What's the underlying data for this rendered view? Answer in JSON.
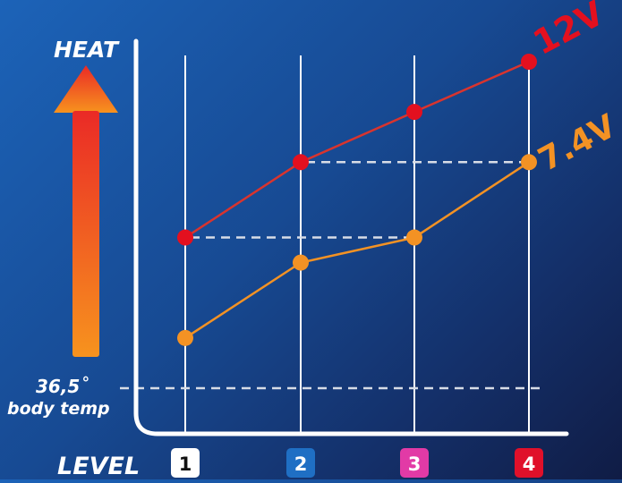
{
  "chart_data": {
    "type": "line",
    "y_axis_label": "HEAT",
    "x_axis_label": "LEVEL",
    "baseline": {
      "value_label": "36,5˚",
      "label": "body temp"
    },
    "categories": [
      "1",
      "2",
      "3",
      "4"
    ],
    "category_colors": [
      "#ffffff",
      "#1f6fc4",
      "#e23aa6",
      "#e0102a"
    ],
    "category_text_colors": [
      "#111111",
      "#ffffff",
      "#ffffff",
      "#ffffff"
    ],
    "series": [
      {
        "name": "12V",
        "color": "#e3101f",
        "line_color": "#d9342e",
        "values": [
          3,
          4.5,
          5.5,
          6.5
        ]
      },
      {
        "name": "7.4V",
        "color": "#f39224",
        "line_color": "#f39224",
        "values": [
          1,
          2.5,
          3,
          4.5
        ]
      }
    ],
    "reference_lines": [
      {
        "from_series": "12V",
        "from_category": "1",
        "to_series": "7.4V",
        "to_category": "3"
      },
      {
        "from_series": "12V",
        "from_category": "2",
        "to_series": "7.4V",
        "to_category": "4"
      }
    ],
    "ylim": [
      0,
      6.5
    ],
    "grid": true,
    "colors": {
      "axis": "#ffffff",
      "arrow_top": "#ea2a26",
      "arrow_bottom": "#f7931e",
      "dashed": "#d7dce6"
    }
  }
}
